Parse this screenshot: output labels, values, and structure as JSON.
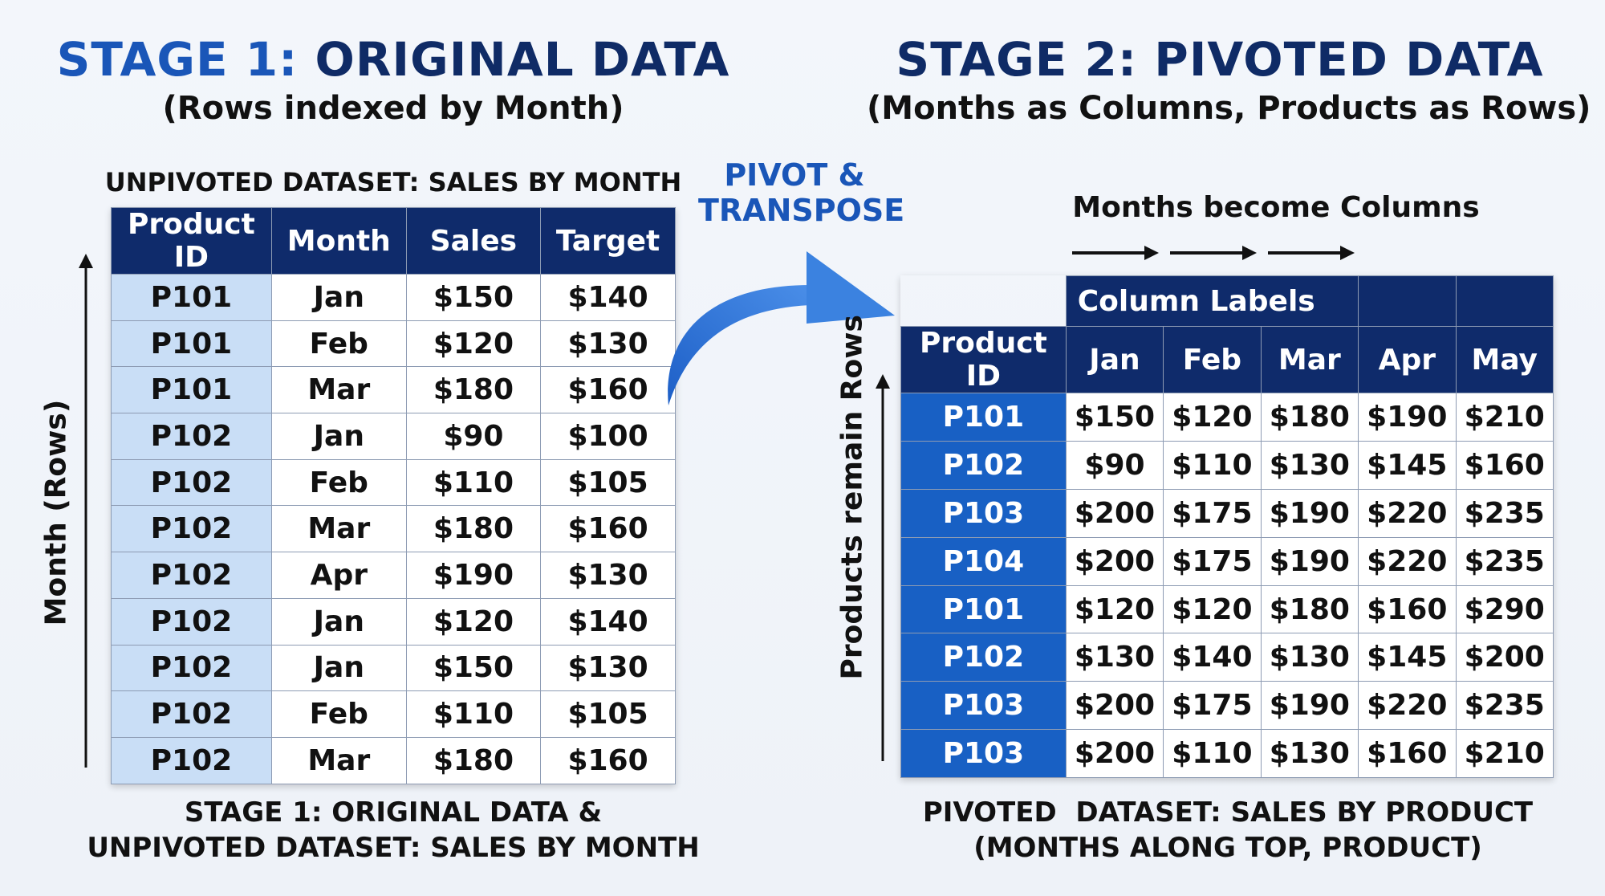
{
  "stage1": {
    "title_part1": "STAGE 1:",
    "title_part2": "ORIGINAL DATA",
    "subtitle": "(Rows indexed by Month)",
    "table_caption": "UNPIVOTED DATASET: SALES BY MONTH",
    "axis_label": "Month (Rows)",
    "headers": [
      "Product ID",
      "Month",
      "Sales",
      "Target"
    ],
    "rows": [
      [
        "P101",
        "Jan",
        "$150",
        "$140"
      ],
      [
        "P101",
        "Feb",
        "$120",
        "$130"
      ],
      [
        "P101",
        "Mar",
        "$180",
        "$160"
      ],
      [
        "P102",
        "Jan",
        "$90",
        "$100"
      ],
      [
        "P102",
        "Feb",
        "$110",
        "$105"
      ],
      [
        "P102",
        "Mar",
        "$180",
        "$160"
      ],
      [
        "P102",
        "Apr",
        "$190",
        "$130"
      ],
      [
        "P102",
        "Jan",
        "$120",
        "$140"
      ],
      [
        "P102",
        "Jan",
        "$150",
        "$130"
      ],
      [
        "P102",
        "Feb",
        "$110",
        "$105"
      ],
      [
        "P102",
        "Mar",
        "$180",
        "$160"
      ]
    ],
    "footer_line1": "STAGE 1: ORIGINAL DATA &",
    "footer_line2": "UNPIVOTED DATASET: SALES BY MONTH"
  },
  "pivot_arrow": {
    "line1": "PIVOT &",
    "line2": "TRANSPOSE"
  },
  "stage2": {
    "title": "STAGE 2: PIVOTED DATA",
    "subtitle": "(Months as Columns, Products as Rows)",
    "months_note": "Months become Columns",
    "axis_label": "Products remain Rows",
    "column_labels_header": "Column Labels",
    "headers": [
      "Product ID",
      "Jan",
      "Feb",
      "Mar",
      "Apr",
      "May"
    ],
    "rows": [
      [
        "P101",
        "$150",
        "$120",
        "$180",
        "$190",
        "$210"
      ],
      [
        "P102",
        "$90",
        "$110",
        "$130",
        "$145",
        "$160"
      ],
      [
        "P103",
        "$200",
        "$175",
        "$190",
        "$220",
        "$235"
      ],
      [
        "P104",
        "$200",
        "$175",
        "$190",
        "$220",
        "$235"
      ],
      [
        "P101",
        "$120",
        "$120",
        "$180",
        "$160",
        "$290"
      ],
      [
        "P102",
        "$130",
        "$140",
        "$130",
        "$145",
        "$200"
      ],
      [
        "P103",
        "$200",
        "$175",
        "$190",
        "$220",
        "$235"
      ],
      [
        "P103",
        "$200",
        "$110",
        "$130",
        "$160",
        "$210"
      ]
    ],
    "footer_line1": "PIVOTED  DATASET: SALES BY PRODUCT",
    "footer_line2": "(MONTHS ALONG TOP, PRODUCT)"
  },
  "colors": {
    "header_navy": "#0f2b6b",
    "pid_light_blue": "#c9def6",
    "pid_dark_blue": "#1860c4",
    "accent_blue": "#1a56b8"
  }
}
